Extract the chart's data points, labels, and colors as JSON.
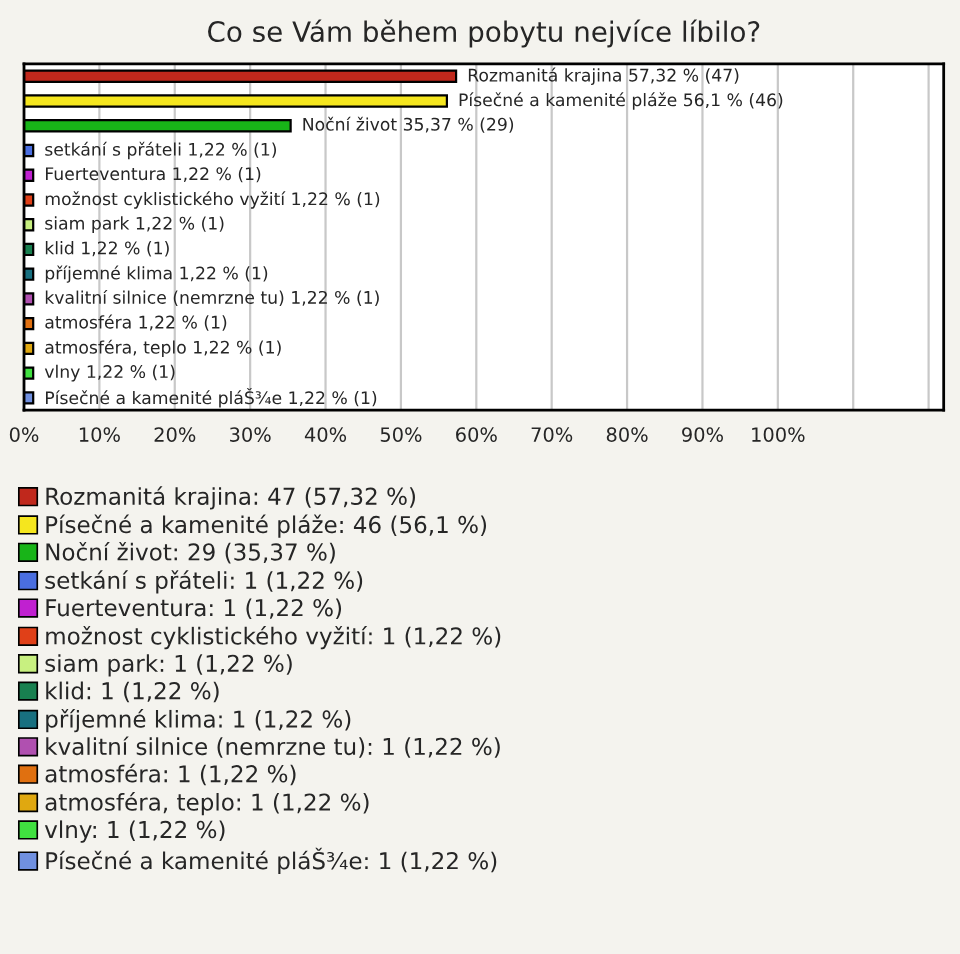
{
  "chart_data": {
    "type": "bar",
    "orientation": "horizontal",
    "title": "Co se Vám během pobytu nejvíce líbilo?",
    "categories": [
      null,
      null,
      null,
      null,
      null,
      null,
      null,
      null,
      null,
      null,
      null,
      null,
      null,
      null
    ],
    "series": [
      {
        "name": "Rozmanitá krajina: 47 (57,32 %)",
        "color": "#c0281c",
        "values": [
          57.32,
          null,
          null,
          null,
          null,
          null,
          null,
          null,
          null,
          null,
          null,
          null,
          null,
          null
        ],
        "value_labels": [
          "Rozmanitá krajina 57,32 % (47)",
          null,
          null,
          null,
          null,
          null,
          null,
          null,
          null,
          null,
          null,
          null,
          null,
          null
        ]
      },
      {
        "name": "Písečné a kamenité pláže: 46 (56,1 %)",
        "color": "#f5e61e",
        "values": [
          null,
          56.1,
          null,
          null,
          null,
          null,
          null,
          null,
          null,
          null,
          null,
          null,
          null,
          null
        ],
        "value_labels": [
          null,
          "Písečné a kamenité pláže 56,1 % (46)",
          null,
          null,
          null,
          null,
          null,
          null,
          null,
          null,
          null,
          null,
          null,
          null
        ]
      },
      {
        "name": "Noční život: 29 (35,37 %)",
        "color": "#18b418",
        "values": [
          null,
          null,
          35.37,
          null,
          null,
          null,
          null,
          null,
          null,
          null,
          null,
          null,
          null,
          null
        ],
        "value_labels": [
          null,
          null,
          "Noční život 35,37 % (29)",
          null,
          null,
          null,
          null,
          null,
          null,
          null,
          null,
          null,
          null,
          null
        ]
      },
      {
        "name": "setkání s přáteli: 1 (1,22 %)",
        "color": "#4a6ee0",
        "values": [
          null,
          null,
          null,
          1.22,
          null,
          null,
          null,
          null,
          null,
          null,
          null,
          null,
          null,
          null
        ],
        "value_labels": [
          null,
          null,
          null,
          "setkání s přáteli 1,22 % (1)",
          null,
          null,
          null,
          null,
          null,
          null,
          null,
          null,
          null,
          null
        ]
      },
      {
        "name": "Fuerteventura: 1 (1,22 %)",
        "color": "#c020d0",
        "values": [
          null,
          null,
          null,
          null,
          1.22,
          null,
          null,
          null,
          null,
          null,
          null,
          null,
          null,
          null
        ],
        "value_labels": [
          null,
          null,
          null,
          null,
          "Fuerteventura 1,22 % (1)",
          null,
          null,
          null,
          null,
          null,
          null,
          null,
          null,
          null
        ]
      },
      {
        "name": "možnost cyklistického vyžití: 1 (1,22 %)",
        "color": "#e04018",
        "values": [
          null,
          null,
          null,
          null,
          null,
          1.22,
          null,
          null,
          null,
          null,
          null,
          null,
          null,
          null
        ],
        "value_labels": [
          null,
          null,
          null,
          null,
          null,
          "možnost cyklistického vyžití 1,22 % (1)",
          null,
          null,
          null,
          null,
          null,
          null,
          null,
          null
        ]
      },
      {
        "name": "siam park: 1 (1,22 %)",
        "color": "#c8f080",
        "values": [
          null,
          null,
          null,
          null,
          null,
          null,
          1.22,
          null,
          null,
          null,
          null,
          null,
          null,
          null
        ],
        "value_labels": [
          null,
          null,
          null,
          null,
          null,
          null,
          "siam park 1,22 % (1)",
          null,
          null,
          null,
          null,
          null,
          null,
          null
        ]
      },
      {
        "name": "klid: 1 (1,22 %)",
        "color": "#188050",
        "values": [
          null,
          null,
          null,
          null,
          null,
          null,
          null,
          1.22,
          null,
          null,
          null,
          null,
          null,
          null
        ],
        "value_labels": [
          null,
          null,
          null,
          null,
          null,
          null,
          null,
          "klid 1,22 % (1)",
          null,
          null,
          null,
          null,
          null,
          null
        ]
      },
      {
        "name": "příjemné klima: 1 (1,22 %)",
        "color": "#187080",
        "values": [
          null,
          null,
          null,
          null,
          null,
          null,
          null,
          null,
          1.22,
          null,
          null,
          null,
          null,
          null
        ],
        "value_labels": [
          null,
          null,
          null,
          null,
          null,
          null,
          null,
          null,
          "příjemné klima 1,22 % (1)",
          null,
          null,
          null,
          null,
          null
        ]
      },
      {
        "name": "kvalitní silnice (nemrzne tu): 1 (1,22 %)",
        "color": "#b050b0",
        "values": [
          null,
          null,
          null,
          null,
          null,
          null,
          null,
          null,
          null,
          1.22,
          null,
          null,
          null,
          null
        ],
        "value_labels": [
          null,
          null,
          null,
          null,
          null,
          null,
          null,
          null,
          null,
          "kvalitní silnice (nemrzne tu) 1,22 % (1)",
          null,
          null,
          null,
          null
        ]
      },
      {
        "name": "atmosféra: 1 (1,22 %)",
        "color": "#e07010",
        "values": [
          null,
          null,
          null,
          null,
          null,
          null,
          null,
          null,
          null,
          null,
          1.22,
          null,
          null,
          null
        ],
        "value_labels": [
          null,
          null,
          null,
          null,
          null,
          null,
          null,
          null,
          null,
          null,
          "atmosféra 1,22 % (1)",
          null,
          null,
          null
        ]
      },
      {
        "name": "atmosféra, teplo: 1 (1,22 %)",
        "color": "#e0a810",
        "values": [
          null,
          null,
          null,
          null,
          null,
          null,
          null,
          null,
          null,
          null,
          null,
          1.22,
          null,
          null
        ],
        "value_labels": [
          null,
          null,
          null,
          null,
          null,
          null,
          null,
          null,
          null,
          null,
          null,
          "atmosféra, teplo 1,22 % (1)",
          null,
          null
        ]
      },
      {
        "name": "vlny: 1 (1,22 %)",
        "color": "#40e040",
        "values": [
          null,
          null,
          null,
          null,
          null,
          null,
          null,
          null,
          null,
          null,
          null,
          null,
          1.22,
          null
        ],
        "value_labels": [
          null,
          null,
          null,
          null,
          null,
          null,
          null,
          null,
          null,
          null,
          null,
          null,
          "vlny 1,22 % (1)",
          null
        ]
      },
      {
        "name": "Písečné a kamenité pláŠ¾e: 1 (1,22 %)",
        "color": "#7090e0",
        "values": [
          null,
          null,
          null,
          null,
          null,
          null,
          null,
          null,
          null,
          null,
          null,
          null,
          null,
          1.22
        ],
        "value_labels": [
          null,
          null,
          null,
          null,
          null,
          null,
          null,
          null,
          null,
          null,
          null,
          null,
          null,
          "Písečné a kamenité pláŠ¾e 1,22 % (1)"
        ]
      }
    ],
    "xlim": [
      0,
      122
    ],
    "xticks": [
      {
        "value": 0,
        "label": "0%"
      },
      {
        "value": 10,
        "label": "10%"
      },
      {
        "value": 20,
        "label": "20%"
      },
      {
        "value": 30,
        "label": "30%"
      },
      {
        "value": 40,
        "label": "40%"
      },
      {
        "value": 50,
        "label": "50%"
      },
      {
        "value": 60,
        "label": "60%"
      },
      {
        "value": 70,
        "label": "70%"
      },
      {
        "value": 80,
        "label": "80%"
      },
      {
        "value": 90,
        "label": "90%"
      },
      {
        "value": 100,
        "label": "100%"
      },
      {
        "value": 110,
        "label": null
      },
      {
        "value": 120,
        "label": null
      }
    ],
    "grid": "x",
    "legend": "bottom"
  }
}
